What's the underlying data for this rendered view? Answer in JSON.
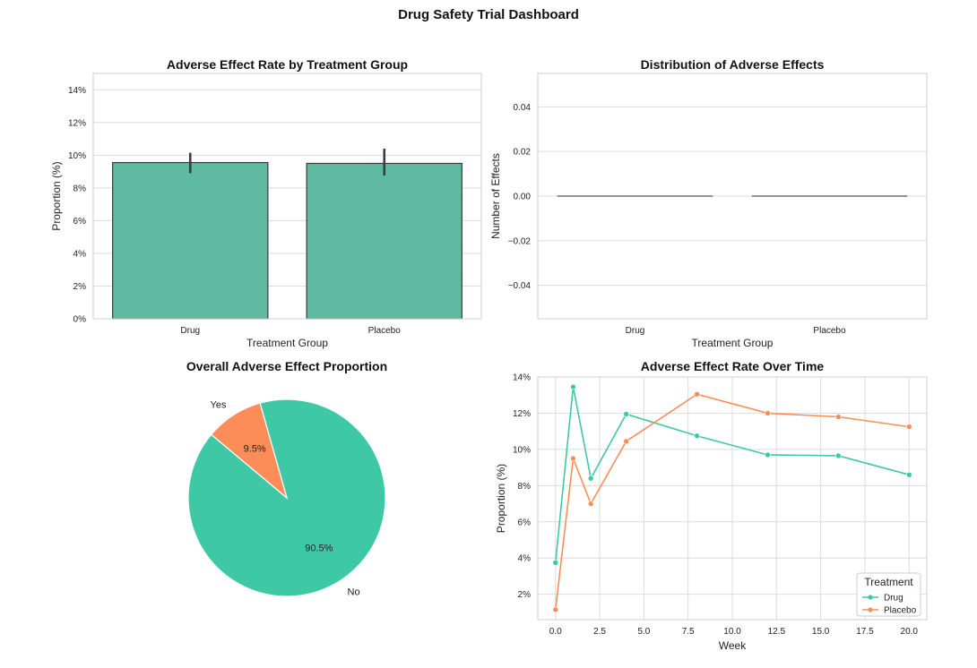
{
  "dashboard": {
    "title": "Drug Safety Trial Dashboard"
  },
  "chart_data": [
    {
      "type": "bar",
      "title": "Adverse Effect Rate by Treatment Group",
      "xlabel": "Treatment Group",
      "ylabel": "Proportion (%)",
      "categories": [
        "Drug",
        "Placebo"
      ],
      "values": [
        9.55,
        9.5
      ],
      "error_low": [
        8.9,
        8.75
      ],
      "error_high": [
        10.15,
        10.4
      ],
      "ylim": [
        0,
        15
      ],
      "yticks": [
        0,
        2,
        4,
        6,
        8,
        10,
        12,
        14
      ],
      "ytick_labels": [
        "0%",
        "2%",
        "4%",
        "6%",
        "8%",
        "10%",
        "12%",
        "14%"
      ],
      "color": "#5ebba1",
      "grid": true
    },
    {
      "type": "bar",
      "title": "Distribution of Adverse Effects",
      "xlabel": "Treatment Group",
      "ylabel": "Number of Effects",
      "categories": [
        "Drug",
        "Placebo"
      ],
      "values": [
        0,
        0
      ],
      "ylim": [
        -0.055,
        0.055
      ],
      "yticks": [
        -0.04,
        -0.02,
        0.0,
        0.02,
        0.04
      ],
      "ytick_labels": [
        "−0.04",
        "−0.02",
        "0.00",
        "0.02",
        "0.04"
      ],
      "grid": true
    },
    {
      "type": "pie",
      "title": "Overall Adverse Effect Proportion",
      "labels": [
        "No",
        "Yes"
      ],
      "values": [
        90.5,
        9.5
      ],
      "pct_labels": [
        "90.5%",
        "9.5%"
      ],
      "colors": [
        "#3fc8a5",
        "#fc8d59"
      ]
    },
    {
      "type": "line",
      "title": "Adverse Effect Rate Over Time",
      "xlabel": "Week",
      "ylabel": "Proportion (%)",
      "x": [
        0,
        1,
        2,
        4,
        8,
        12,
        16,
        20
      ],
      "series": [
        {
          "name": "Drug",
          "values": [
            3.75,
            13.45,
            8.4,
            11.95,
            10.75,
            9.7,
            9.65,
            8.6
          ],
          "color": "#3fc8a5"
        },
        {
          "name": "Placebo",
          "values": [
            1.15,
            9.5,
            7.0,
            10.45,
            13.05,
            12.0,
            11.8,
            11.25
          ],
          "color": "#fc8d59"
        }
      ],
      "xlim": [
        -1.0,
        21.0
      ],
      "ylim": [
        0.6,
        14.0
      ],
      "xticks": [
        0,
        2.5,
        5,
        7.5,
        10,
        12.5,
        15,
        17.5,
        20
      ],
      "xtick_labels": [
        "0.0",
        "2.5",
        "5.0",
        "7.5",
        "10.0",
        "12.5",
        "15.0",
        "17.5",
        "20.0"
      ],
      "yticks": [
        2,
        4,
        6,
        8,
        10,
        12,
        14
      ],
      "ytick_labels": [
        "2%",
        "4%",
        "6%",
        "8%",
        "10%",
        "12%",
        "14%"
      ],
      "legend": {
        "title": "Treatment",
        "placement": "bottom-right"
      },
      "grid": true
    }
  ]
}
